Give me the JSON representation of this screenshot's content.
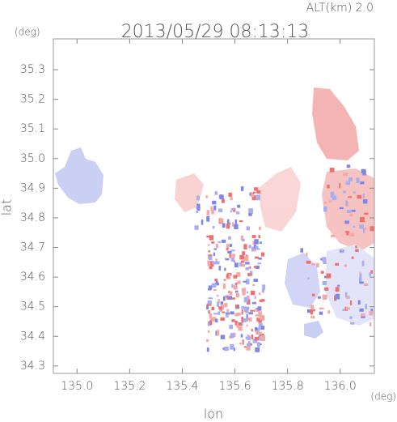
{
  "chart_data": {
    "type": "map",
    "title": "2013/05/29 08:13:13",
    "subtitle": "ALT(km) 2.0",
    "y_unit": "(deg)",
    "x_unit": "(deg)",
    "x_label": "lon",
    "y_label": "lat",
    "xlim": [
      134.91,
      136.13
    ],
    "ylim": [
      34.275,
      35.404
    ],
    "xticks": [
      {
        "value": 135,
        "label": "135.0"
      },
      135.2,
      135.4,
      135.6,
      135.8,
      {
        "value": 136,
        "label": "136.0"
      }
    ],
    "yticks": [
      34.3,
      34.4,
      34.5,
      34.6,
      34.7,
      34.8,
      34.9,
      {
        "value": 35,
        "label": "35.0"
      },
      35.1,
      35.2,
      35.3
    ]
  }
}
